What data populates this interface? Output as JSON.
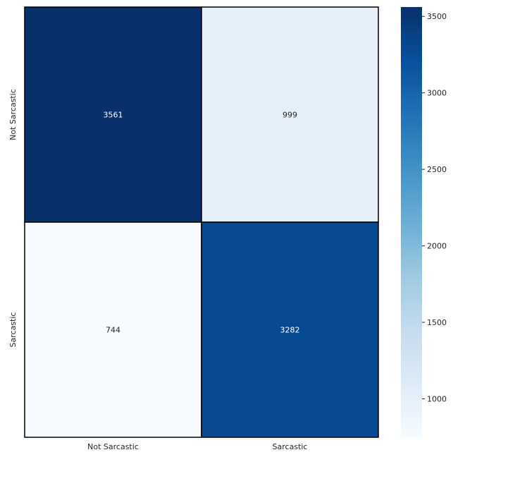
{
  "chart_data": {
    "type": "heatmap",
    "title": "",
    "xlabel": "",
    "ylabel": "",
    "x_categories": [
      "Not Sarcastic",
      "Sarcastic"
    ],
    "y_categories": [
      "Not Sarcastic",
      "Sarcastic"
    ],
    "matrix": [
      [
        3561,
        999
      ],
      [
        744,
        3282
      ]
    ],
    "annotations": [
      [
        "3561",
        "999"
      ],
      [
        "744",
        "3282"
      ]
    ],
    "colormap": "Blues",
    "colorbar": {
      "range": [
        744,
        3561
      ],
      "ticks": [
        1000,
        1500,
        2000,
        2500,
        3000,
        3500
      ],
      "tick_labels": [
        "1000",
        "1500",
        "2000",
        "2500",
        "3000",
        "3500"
      ]
    }
  }
}
